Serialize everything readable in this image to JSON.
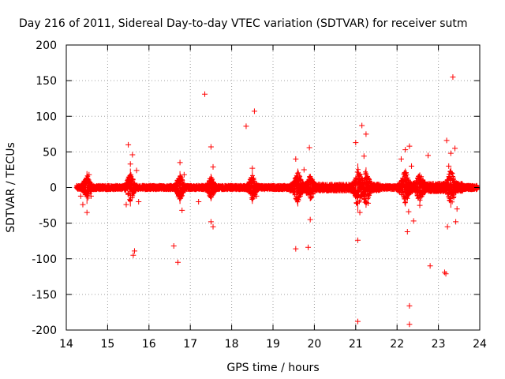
{
  "chart_data": {
    "type": "scatter",
    "title": "Day 216 of 2011, Sidereal Day-to-day VTEC variation (SDTVAR) for receiver sutm",
    "xlabel": "GPS time / hours",
    "ylabel": "SDTVAR / TECUs",
    "xlim": [
      14,
      24
    ],
    "ylim": [
      -200,
      200
    ],
    "xticks": [
      "14",
      "15",
      "16",
      "17",
      "18",
      "19",
      "20",
      "21",
      "22",
      "23",
      "24"
    ],
    "yticks": [
      "200",
      "150",
      "100",
      "50",
      "0",
      "-50",
      "-100",
      "-150",
      "-200"
    ],
    "grid": true,
    "marker": "+",
    "color": "#ff0000",
    "series": [
      {
        "name": "SDTVAR",
        "points": [
          [
            14.35,
            -12
          ],
          [
            14.4,
            -24
          ],
          [
            14.5,
            -35
          ],
          [
            14.55,
            18
          ],
          [
            14.6,
            -12
          ],
          [
            15.45,
            -24
          ],
          [
            15.5,
            60
          ],
          [
            15.55,
            33
          ],
          [
            15.6,
            46
          ],
          [
            15.62,
            -95
          ],
          [
            15.65,
            -89
          ],
          [
            15.7,
            24
          ],
          [
            15.75,
            -20
          ],
          [
            16.6,
            -82
          ],
          [
            16.7,
            -105
          ],
          [
            16.75,
            35
          ],
          [
            16.8,
            -32
          ],
          [
            16.85,
            18
          ],
          [
            17.2,
            -20
          ],
          [
            17.35,
            131
          ],
          [
            17.5,
            57
          ],
          [
            17.55,
            29
          ],
          [
            17.5,
            -48
          ],
          [
            17.55,
            -55
          ],
          [
            18.35,
            86
          ],
          [
            18.5,
            27
          ],
          [
            18.55,
            107
          ],
          [
            18.6,
            -12
          ],
          [
            19.55,
            -86
          ],
          [
            19.55,
            40
          ],
          [
            19.75,
            25
          ],
          [
            19.85,
            -84
          ],
          [
            19.88,
            56
          ],
          [
            19.9,
            -45
          ],
          [
            21.0,
            63
          ],
          [
            21.05,
            -188
          ],
          [
            21.05,
            -74
          ],
          [
            21.1,
            -35
          ],
          [
            21.15,
            87
          ],
          [
            21.2,
            44
          ],
          [
            21.25,
            75
          ],
          [
            21.3,
            -22
          ],
          [
            22.1,
            40
          ],
          [
            22.2,
            53
          ],
          [
            22.25,
            -62
          ],
          [
            22.28,
            -34
          ],
          [
            22.3,
            58
          ],
          [
            22.3,
            -166
          ],
          [
            22.3,
            -192
          ],
          [
            22.35,
            30
          ],
          [
            22.4,
            -47
          ],
          [
            22.55,
            -25
          ],
          [
            22.75,
            45
          ],
          [
            22.8,
            -110
          ],
          [
            23.15,
            -119
          ],
          [
            23.18,
            -121
          ],
          [
            23.2,
            66
          ],
          [
            23.22,
            -55
          ],
          [
            23.25,
            30
          ],
          [
            23.3,
            48
          ],
          [
            23.35,
            155
          ],
          [
            23.4,
            55
          ],
          [
            23.42,
            -48
          ],
          [
            23.45,
            -30
          ]
        ]
      }
    ]
  }
}
